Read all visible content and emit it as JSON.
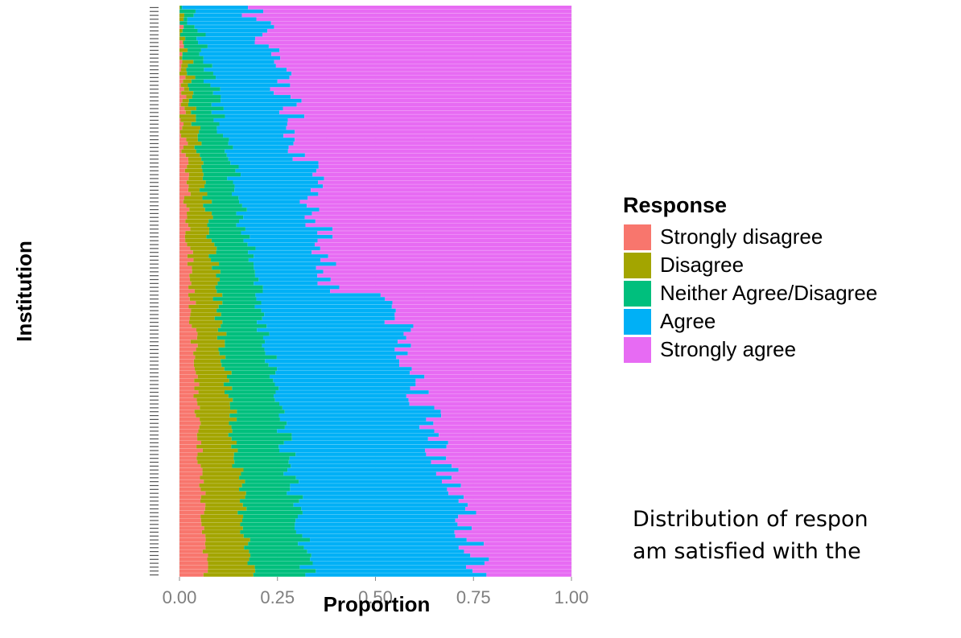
{
  "chart_data": {
    "type": "bar",
    "orientation": "horizontal",
    "stacked": true,
    "xlabel": "Proportion",
    "ylabel": "Institution",
    "xlim": [
      0,
      1
    ],
    "xticks": [
      "0.00",
      "0.25",
      "0.50",
      "0.75",
      "1.00"
    ],
    "legend_title": "Response",
    "legend_position": "right",
    "n_categories": 147,
    "series": [
      {
        "name": "Strongly disagree",
        "color": "#F8766D"
      },
      {
        "name": "Disagree",
        "color": "#A3A500"
      },
      {
        "name": "Neither Agree/Disagree",
        "color": "#00BF7D"
      },
      {
        "name": "Agree",
        "color": "#00B0F6"
      },
      {
        "name": "Strongly agree",
        "color": "#E76BF3"
      }
    ],
    "cumulative_boundaries_top": {
      "strongly_disagree_end": 0.0,
      "disagree_end": 0.0,
      "neither_end": 0.02,
      "agree_end": 0.15
    },
    "cumulative_boundaries_bottom": {
      "strongly_disagree_end": 0.07,
      "disagree_end": 0.18,
      "neither_end": 0.33,
      "agree_end": 0.77
    },
    "grid": true
  },
  "caption": {
    "line1": "Distribution of respon",
    "line2": "am satisfied with the"
  }
}
